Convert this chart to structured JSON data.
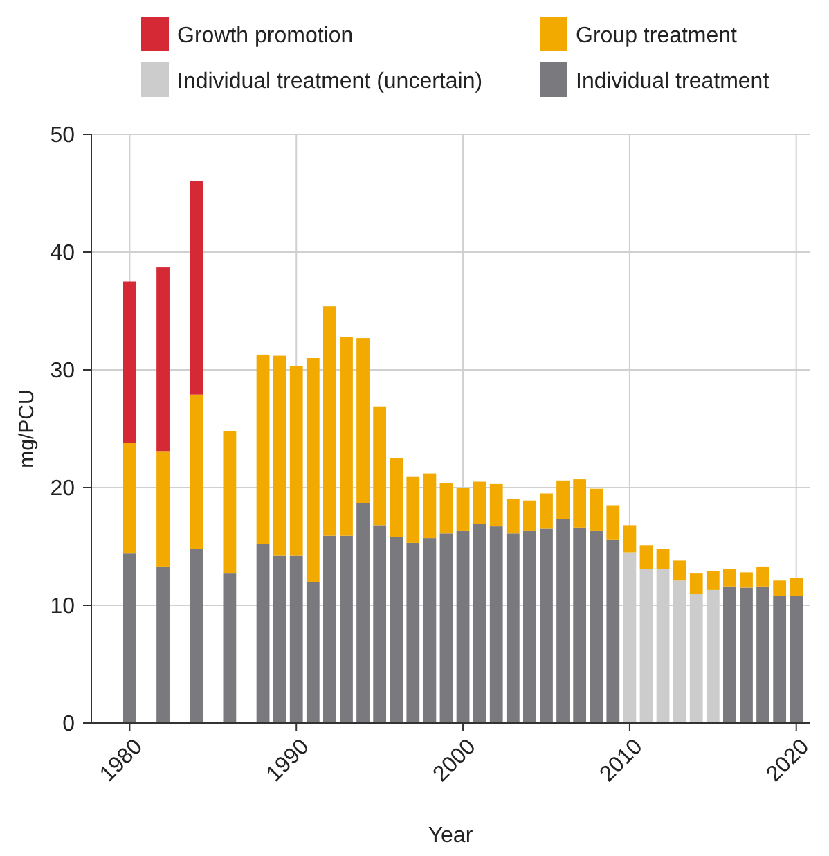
{
  "chart_data": {
    "type": "bar",
    "stacked": true,
    "xlabel": "Year",
    "ylabel": "mg/PCU",
    "x": [
      1980,
      1982,
      1984,
      1986,
      1988,
      1989,
      1990,
      1991,
      1992,
      1993,
      1994,
      1995,
      1996,
      1997,
      1998,
      1999,
      2000,
      2001,
      2002,
      2003,
      2004,
      2005,
      2006,
      2007,
      2008,
      2009,
      2010,
      2011,
      2012,
      2013,
      2014,
      2015,
      2016,
      2017,
      2018,
      2019,
      2020
    ],
    "series": [
      {
        "name": "Individual treatment",
        "color": "#7a7a7e",
        "values": [
          14.4,
          13.3,
          14.8,
          12.7,
          15.2,
          14.2,
          14.2,
          12.0,
          15.9,
          15.9,
          18.7,
          16.8,
          15.8,
          15.3,
          15.7,
          16.1,
          16.3,
          16.9,
          16.7,
          16.1,
          16.3,
          16.5,
          17.3,
          16.6,
          16.3,
          15.6,
          null,
          null,
          null,
          null,
          null,
          null,
          11.6,
          11.5,
          11.6,
          10.8,
          10.8
        ]
      },
      {
        "name": "Individual treatment (uncertain)",
        "color": "#cccccc",
        "values": [
          null,
          null,
          null,
          null,
          null,
          null,
          null,
          null,
          null,
          null,
          null,
          null,
          null,
          null,
          null,
          null,
          null,
          null,
          null,
          null,
          null,
          null,
          null,
          null,
          null,
          null,
          14.5,
          13.1,
          13.1,
          12.1,
          11.0,
          11.3,
          null,
          null,
          null,
          null,
          null
        ]
      },
      {
        "name": "Group treatment",
        "color": "#f2a900",
        "values": [
          9.4,
          9.8,
          13.1,
          12.1,
          16.1,
          17.0,
          16.1,
          19.0,
          19.5,
          16.9,
          14.0,
          10.1,
          6.7,
          5.6,
          5.5,
          4.3,
          3.7,
          3.6,
          3.6,
          2.9,
          2.6,
          3.0,
          3.3,
          4.1,
          3.6,
          2.9,
          2.3,
          2.0,
          1.7,
          1.7,
          1.7,
          1.6,
          1.5,
          1.3,
          1.7,
          1.3,
          1.5
        ]
      },
      {
        "name": "Growth promotion",
        "color": "#d62936",
        "values": [
          13.7,
          15.6,
          18.1,
          null,
          null,
          null,
          null,
          null,
          null,
          null,
          null,
          null,
          null,
          null,
          null,
          null,
          null,
          null,
          null,
          null,
          null,
          null,
          null,
          null,
          null,
          null,
          null,
          null,
          null,
          null,
          null,
          null,
          null,
          null,
          null,
          null,
          null
        ]
      }
    ],
    "xlim": [
      1977.7,
      2020.8
    ],
    "xticks": [
      1980,
      1990,
      2000,
      2010,
      2020
    ],
    "ylim": [
      0,
      50
    ],
    "yticks": [
      0,
      10,
      20,
      30,
      40,
      50
    ],
    "grid": true,
    "legend": "top"
  }
}
